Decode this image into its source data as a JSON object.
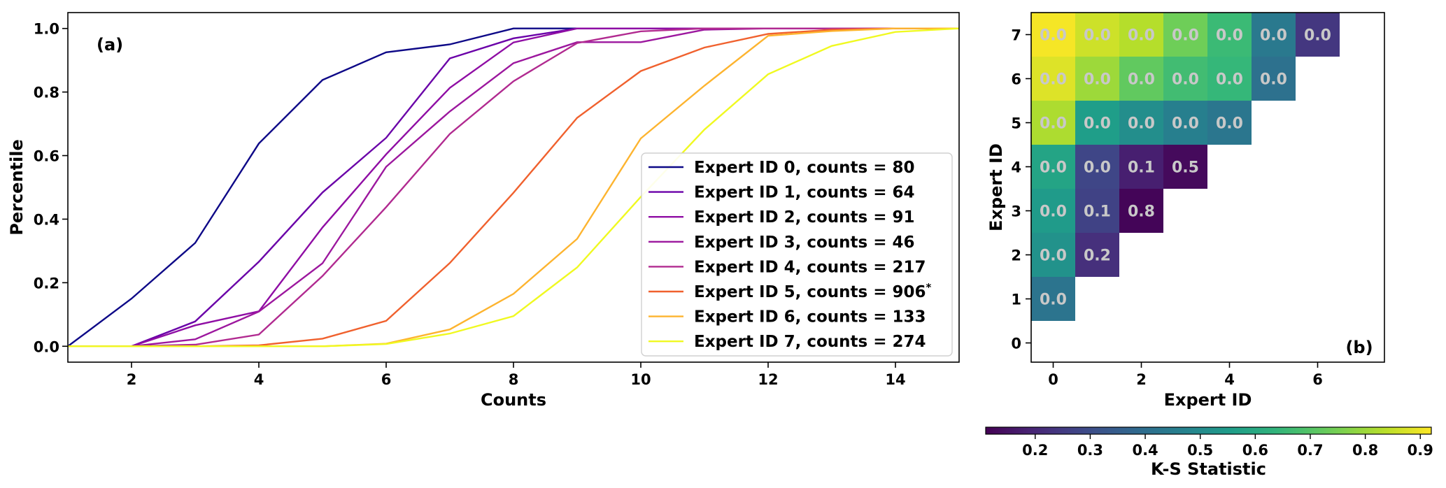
{
  "chart_data": [
    {
      "type": "line",
      "panel_label": "(a)",
      "xlabel": "Counts",
      "ylabel": "Percentile",
      "xlim": [
        1,
        15
      ],
      "ylim": [
        -0.05,
        1.05
      ],
      "xticks": [
        2,
        4,
        6,
        8,
        10,
        12,
        14
      ],
      "yticks": [
        0.0,
        0.2,
        0.4,
        0.6,
        0.8,
        1.0
      ],
      "ytick_labels": [
        "0.0",
        "0.2",
        "0.4",
        "0.6",
        "0.8",
        "1.0"
      ],
      "grid": false,
      "legend_position": "lower-right",
      "series": [
        {
          "name": "Expert ID 0, counts = 80",
          "color": "#0d0887",
          "x": [
            1,
            2,
            3,
            4,
            5,
            6,
            7,
            8,
            9,
            10,
            11,
            12,
            13,
            14,
            15
          ],
          "y": [
            0.0,
            0.15,
            0.325,
            0.638,
            0.838,
            0.925,
            0.95,
            1.0,
            1.0,
            1.0,
            1.0,
            1.0,
            1.0,
            1.0,
            1.0
          ]
        },
        {
          "name": "Expert ID 1, counts = 64",
          "color": "#6a00a8",
          "x": [
            1,
            2,
            3,
            4,
            5,
            6,
            7,
            8,
            9,
            10,
            11,
            12,
            13,
            14,
            15
          ],
          "y": [
            0.0,
            0.0,
            0.078,
            0.266,
            0.484,
            0.656,
            0.906,
            0.969,
            1.0,
            1.0,
            1.0,
            1.0,
            1.0,
            1.0,
            1.0
          ]
        },
        {
          "name": "Expert ID 2, counts = 91",
          "color": "#8f0da4",
          "x": [
            1,
            2,
            3,
            4,
            5,
            6,
            7,
            8,
            9,
            10,
            11,
            12,
            13,
            14,
            15
          ],
          "y": [
            0.0,
            0.0,
            0.066,
            0.11,
            0.374,
            0.604,
            0.813,
            0.956,
            1.0,
            1.0,
            1.0,
            1.0,
            1.0,
            1.0,
            1.0
          ]
        },
        {
          "name": "Expert ID 3, counts = 46",
          "color": "#9c179e",
          "x": [
            1,
            2,
            3,
            4,
            5,
            6,
            7,
            8,
            9,
            10,
            11,
            12,
            13,
            14,
            15
          ],
          "y": [
            0.0,
            0.0,
            0.022,
            0.109,
            0.261,
            0.565,
            0.739,
            0.891,
            0.957,
            0.957,
            0.996,
            1.0,
            1.0,
            1.0,
            1.0
          ]
        },
        {
          "name": "Expert ID 4, counts = 217",
          "color": "#b12a90",
          "x": [
            1,
            2,
            3,
            4,
            5,
            6,
            7,
            8,
            9,
            10,
            11,
            12,
            13,
            14,
            15
          ],
          "y": [
            0.0,
            0.0,
            0.005,
            0.037,
            0.221,
            0.438,
            0.668,
            0.834,
            0.954,
            0.991,
            1.0,
            1.0,
            1.0,
            1.0,
            1.0
          ]
        },
        {
          "name": "Expert ID 5, counts = 906",
          "name_suffix": "*",
          "color": "#f0612e",
          "x": [
            1,
            2,
            3,
            4,
            5,
            6,
            7,
            8,
            9,
            10,
            11,
            12,
            13,
            14,
            15
          ],
          "y": [
            0.0,
            0.0,
            0.0,
            0.003,
            0.024,
            0.08,
            0.262,
            0.483,
            0.719,
            0.866,
            0.94,
            0.983,
            0.996,
            1.0,
            1.0
          ]
        },
        {
          "name": "Expert ID 6, counts = 133",
          "color": "#fdb42f",
          "x": [
            1,
            2,
            3,
            4,
            5,
            6,
            7,
            8,
            9,
            10,
            11,
            12,
            13,
            14,
            15
          ],
          "y": [
            0.0,
            0.0,
            0.0,
            0.0,
            0.0,
            0.008,
            0.053,
            0.165,
            0.338,
            0.654,
            0.82,
            0.977,
            0.992,
            1.0,
            1.0
          ]
        },
        {
          "name": "Expert ID 7, counts = 274",
          "color": "#f0f921",
          "x": [
            1,
            2,
            3,
            4,
            5,
            6,
            7,
            8,
            9,
            10,
            11,
            12,
            13,
            14,
            15
          ],
          "y": [
            0.0,
            0.0,
            0.0,
            0.0,
            0.0,
            0.007,
            0.04,
            0.095,
            0.248,
            0.47,
            0.682,
            0.856,
            0.945,
            0.989,
            1.0
          ]
        }
      ]
    },
    {
      "type": "heatmap",
      "panel_label": "(b)",
      "xlabel": "Expert ID",
      "ylabel": "Expert ID",
      "xticks": [
        0,
        2,
        4,
        6
      ],
      "yticks": [
        0,
        1,
        2,
        3,
        4,
        5,
        6,
        7
      ],
      "colormap": "viridis",
      "colorbar": {
        "label": "K-S Statistic",
        "min": 0.11,
        "max": 0.92,
        "ticks": [
          0.2,
          0.3,
          0.4,
          0.5,
          0.6,
          0.7,
          0.8,
          0.9
        ],
        "tick_labels": [
          "0.2",
          "0.3",
          "0.4",
          "0.5",
          "0.6",
          "0.7",
          "0.8",
          "0.9"
        ],
        "position": "bottom"
      },
      "cells": [
        {
          "x": 0,
          "y": 1,
          "value": 0.42,
          "label": "0.0"
        },
        {
          "x": 0,
          "y": 2,
          "value": 0.52,
          "label": "0.0"
        },
        {
          "x": 1,
          "y": 2,
          "value": 0.22,
          "label": "0.2"
        },
        {
          "x": 0,
          "y": 3,
          "value": 0.55,
          "label": "0.0"
        },
        {
          "x": 1,
          "y": 3,
          "value": 0.27,
          "label": "0.1"
        },
        {
          "x": 2,
          "y": 3,
          "value": 0.12,
          "label": "0.8"
        },
        {
          "x": 0,
          "y": 4,
          "value": 0.58,
          "label": "0.0"
        },
        {
          "x": 1,
          "y": 4,
          "value": 0.28,
          "label": "0.0"
        },
        {
          "x": 2,
          "y": 4,
          "value": 0.18,
          "label": "0.1"
        },
        {
          "x": 3,
          "y": 4,
          "value": 0.13,
          "label": "0.5"
        },
        {
          "x": 0,
          "y": 5,
          "value": 0.82,
          "label": "0.0"
        },
        {
          "x": 1,
          "y": 5,
          "value": 0.56,
          "label": "0.0"
        },
        {
          "x": 2,
          "y": 5,
          "value": 0.51,
          "label": "0.0"
        },
        {
          "x": 3,
          "y": 5,
          "value": 0.46,
          "label": "0.0"
        },
        {
          "x": 4,
          "y": 5,
          "value": 0.43,
          "label": "0.0"
        },
        {
          "x": 0,
          "y": 6,
          "value": 0.88,
          "label": "0.0"
        },
        {
          "x": 1,
          "y": 6,
          "value": 0.8,
          "label": "0.0"
        },
        {
          "x": 2,
          "y": 6,
          "value": 0.72,
          "label": "0.0"
        },
        {
          "x": 3,
          "y": 6,
          "value": 0.67,
          "label": "0.0"
        },
        {
          "x": 4,
          "y": 6,
          "value": 0.65,
          "label": "0.0"
        },
        {
          "x": 5,
          "y": 6,
          "value": 0.41,
          "label": "0.0"
        },
        {
          "x": 0,
          "y": 7,
          "value": 0.91,
          "label": "0.0"
        },
        {
          "x": 1,
          "y": 7,
          "value": 0.86,
          "label": "0.0"
        },
        {
          "x": 2,
          "y": 7,
          "value": 0.83,
          "label": "0.0"
        },
        {
          "x": 3,
          "y": 7,
          "value": 0.74,
          "label": "0.0"
        },
        {
          "x": 4,
          "y": 7,
          "value": 0.66,
          "label": "0.0"
        },
        {
          "x": 5,
          "y": 7,
          "value": 0.44,
          "label": "0.0"
        },
        {
          "x": 6,
          "y": 7,
          "value": 0.24,
          "label": "0.0"
        }
      ]
    }
  ]
}
